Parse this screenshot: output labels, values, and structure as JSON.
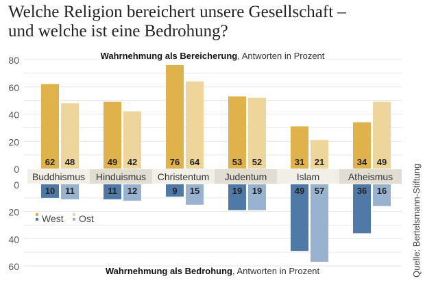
{
  "title_line1": "Welche Religion bereichert unsere Gesellschaft –",
  "title_line2": "und welche ist eine Bedrohung?",
  "source": "Quelle: Bertelsmann-Stiftung",
  "chart_data": [
    {
      "type": "bar",
      "title_bold": "Wahrnehmung als Bereicherung",
      "title_rest": ", Antworten in Prozent",
      "categories": [
        "Buddhismus",
        "Hinduismus",
        "Christentum",
        "Judentum",
        "Islam",
        "Atheismus"
      ],
      "series": [
        {
          "name": "West",
          "values": [
            62,
            49,
            76,
            53,
            31,
            34
          ],
          "color": "#dfb24c"
        },
        {
          "name": "Ost",
          "values": [
            48,
            42,
            64,
            52,
            21,
            49
          ],
          "color": "#edd59c"
        }
      ],
      "ylim": [
        0,
        80
      ],
      "yticks": [
        "0",
        "20",
        "40",
        "60",
        "80"
      ],
      "grid": true
    },
    {
      "type": "bar",
      "title_bold": "Wahrnehmung als Bedrohung",
      "title_rest": ", Antworten in Prozent",
      "categories": [
        "Buddhismus",
        "Hinduismus",
        "Christentum",
        "Judentum",
        "Islam",
        "Atheismus"
      ],
      "series": [
        {
          "name": "West",
          "values": [
            10,
            11,
            9,
            19,
            49,
            36
          ],
          "color": "#4f79a6"
        },
        {
          "name": "Ost",
          "values": [
            11,
            12,
            15,
            19,
            57,
            16
          ],
          "color": "#98b2d0"
        }
      ],
      "ylim": [
        0,
        60
      ],
      "yticks": [
        "0",
        "20",
        "40",
        "60"
      ],
      "inverted": true,
      "grid": true
    }
  ],
  "legend": {
    "position": "bottom-left",
    "items": [
      "West",
      "Ost"
    ]
  }
}
